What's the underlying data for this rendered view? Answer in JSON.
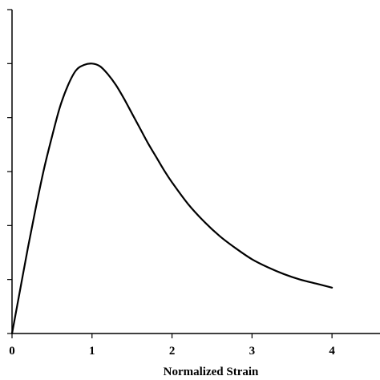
{
  "chart_data": {
    "type": "line",
    "title": "",
    "xlabel": "Normalized Strain",
    "ylabel": "",
    "xlim": [
      0,
      4.6
    ],
    "ylim": [
      0,
      1.2
    ],
    "grid": false,
    "legend": "none",
    "x_ticks": [
      0,
      1,
      2,
      3,
      4
    ],
    "x_tick_labels": [
      "0",
      "1",
      "2",
      "3",
      "4"
    ],
    "y_ticks": [
      0,
      0.2,
      0.4,
      0.6,
      0.8,
      1.0,
      1.2
    ],
    "y_tick_labels": [],
    "line_color": "#000000",
    "series": [
      {
        "x": [
          0,
          0.1,
          0.2,
          0.3,
          0.4,
          0.5,
          0.6,
          0.7,
          0.8,
          0.9,
          1.0,
          1.1,
          1.2,
          1.3,
          1.4,
          1.5,
          1.6,
          1.7,
          1.8,
          1.9,
          2.0,
          2.2,
          2.4,
          2.6,
          2.8,
          3.0,
          3.2,
          3.4,
          3.6,
          3.8,
          4.0
        ],
        "values": [
          0,
          0.16,
          0.32,
          0.47,
          0.61,
          0.73,
          0.84,
          0.92,
          0.975,
          0.995,
          1.0,
          0.99,
          0.96,
          0.92,
          0.87,
          0.815,
          0.76,
          0.705,
          0.655,
          0.605,
          0.56,
          0.48,
          0.415,
          0.36,
          0.315,
          0.275,
          0.245,
          0.22,
          0.2,
          0.185,
          0.17
        ]
      }
    ]
  }
}
